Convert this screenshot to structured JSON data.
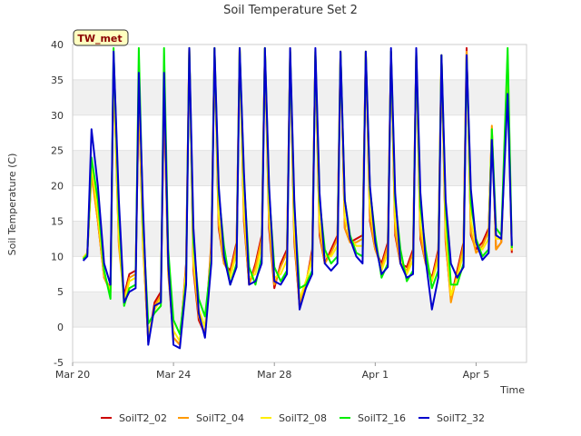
{
  "chart_data": {
    "type": "line",
    "title": "Soil Temperature Set 2",
    "xlabel": "Time",
    "ylabel": "Soil Temperature (C)",
    "station_tag": "TW_met",
    "xlim": [
      "2023-03-20",
      "2023-04-07"
    ],
    "ylim": [
      -5,
      40
    ],
    "yticks": [
      -5,
      0,
      5,
      10,
      15,
      20,
      25,
      30,
      35,
      40
    ],
    "xticks": [
      {
        "date": "2023-03-20",
        "label": "Mar 20"
      },
      {
        "date": "2023-03-24",
        "label": "Mar 24"
      },
      {
        "date": "2023-03-28",
        "label": "Mar 28"
      },
      {
        "date": "2023-04-01",
        "label": "Apr 1"
      },
      {
        "date": "2023-04-05",
        "label": "Apr 5"
      }
    ],
    "grid": "horizontal-bands",
    "legend_position": "bottom",
    "x": [
      "2023-03-20 10:00",
      "2023-03-20 14:00",
      "2023-03-20 18:00",
      "2023-03-21 00:00",
      "2023-03-21 06:00",
      "2023-03-21 12:00",
      "2023-03-21 15:00",
      "2023-03-21 20:00",
      "2023-03-22 01:00",
      "2023-03-22 06:00",
      "2023-03-22 12:00",
      "2023-03-22 15:00",
      "2023-03-22 19:00",
      "2023-03-23 00:00",
      "2023-03-23 06:00",
      "2023-03-23 12:00",
      "2023-03-23 15:00",
      "2023-03-23 19:00",
      "2023-03-24 00:00",
      "2023-03-24 06:00",
      "2023-03-24 12:00",
      "2023-03-24 15:00",
      "2023-03-24 19:00",
      "2023-03-25 00:00",
      "2023-03-25 06:00",
      "2023-03-25 12:00",
      "2023-03-25 15:00",
      "2023-03-25 19:00",
      "2023-03-26 00:00",
      "2023-03-26 06:00",
      "2023-03-26 12:00",
      "2023-03-26 15:00",
      "2023-03-26 19:00",
      "2023-03-27 00:00",
      "2023-03-27 06:00",
      "2023-03-27 12:00",
      "2023-03-27 15:00",
      "2023-03-27 19:00",
      "2023-03-28 00:00",
      "2023-03-28 06:00",
      "2023-03-28 12:00",
      "2023-03-28 15:00",
      "2023-03-28 19:00",
      "2023-03-29 00:00",
      "2023-03-29 06:00",
      "2023-03-29 12:00",
      "2023-03-29 15:00",
      "2023-03-29 19:00",
      "2023-03-30 00:00",
      "2023-03-30 06:00",
      "2023-03-30 12:00",
      "2023-03-30 15:00",
      "2023-03-30 19:00",
      "2023-03-31 00:00",
      "2023-03-31 06:00",
      "2023-03-31 12:00",
      "2023-03-31 15:00",
      "2023-03-31 19:00",
      "2023-04-01 00:00",
      "2023-04-01 06:00",
      "2023-04-01 12:00",
      "2023-04-01 15:00",
      "2023-04-01 19:00",
      "2023-04-02 00:00",
      "2023-04-02 06:00",
      "2023-04-02 12:00",
      "2023-04-02 15:00",
      "2023-04-02 19:00",
      "2023-04-03 00:00",
      "2023-04-03 06:00",
      "2023-04-03 12:00",
      "2023-04-03 15:00",
      "2023-04-03 19:00",
      "2023-04-04 00:00",
      "2023-04-04 06:00",
      "2023-04-04 12:00",
      "2023-04-04 15:00",
      "2023-04-04 19:00",
      "2023-04-05 00:00",
      "2023-04-05 06:00",
      "2023-04-05 12:00",
      "2023-04-05 15:00",
      "2023-04-05 19:00",
      "2023-04-06 00:00",
      "2023-04-06 06:00",
      "2023-04-06 10:00"
    ],
    "series": [
      {
        "name": "SoilT2_02",
        "color": "#cc0000",
        "values": [
          9.8,
          10.5,
          22.0,
          15.0,
          7.0,
          5.5,
          37.0,
          12.0,
          4.5,
          7.5,
          8.0,
          33.0,
          12.0,
          -2.0,
          3.5,
          5.0,
          33.0,
          8.0,
          -1.5,
          -2.5,
          9.0,
          39.5,
          8.0,
          1.0,
          -1.0,
          12.0,
          39.0,
          14.0,
          9.0,
          8.0,
          12.0,
          39.5,
          15.0,
          6.0,
          9.0,
          13.0,
          39.0,
          14.0,
          5.5,
          9.0,
          11.0,
          38.5,
          12.0,
          3.0,
          6.0,
          11.0,
          38.5,
          13.0,
          9.0,
          11.0,
          13.0,
          39.0,
          14.0,
          12.0,
          12.5,
          13.0,
          39.0,
          15.0,
          11.0,
          9.0,
          12.0,
          39.0,
          13.0,
          9.0,
          8.5,
          11.0,
          38.5,
          12.5,
          9.0,
          7.0,
          11.0,
          38.5,
          12.0,
          4.0,
          8.0,
          12.0,
          39.5,
          13.0,
          11.0,
          12.0,
          14.0,
          28.0,
          11.0,
          12.0,
          36.0,
          10.5
        ]
      },
      {
        "name": "SoilT2_04",
        "color": "#ff9900",
        "values": [
          9.8,
          10.5,
          21.5,
          15.0,
          7.0,
          5.0,
          36.5,
          11.5,
          4.0,
          7.0,
          7.5,
          32.5,
          11.5,
          -2.0,
          3.0,
          4.5,
          32.5,
          7.5,
          -1.5,
          -2.5,
          8.5,
          39.5,
          8.5,
          1.5,
          -1.0,
          11.5,
          39.5,
          14.5,
          9.0,
          7.5,
          11.5,
          39.5,
          15.5,
          6.0,
          8.5,
          12.5,
          39.5,
          15.0,
          6.0,
          8.5,
          10.5,
          39.0,
          12.5,
          3.0,
          6.0,
          10.5,
          38.5,
          13.5,
          9.0,
          10.5,
          12.5,
          38.5,
          14.0,
          12.0,
          12.0,
          12.5,
          38.5,
          15.5,
          11.0,
          8.5,
          11.5,
          38.5,
          13.5,
          9.0,
          8.0,
          10.5,
          38.5,
          13.0,
          9.0,
          6.5,
          10.5,
          38.0,
          12.5,
          3.5,
          7.5,
          11.5,
          39.0,
          13.5,
          10.5,
          11.5,
          13.5,
          28.5,
          11.0,
          12.0,
          37.0,
          10.8
        ]
      },
      {
        "name": "SoilT2_08",
        "color": "#ffee00",
        "values": [
          9.8,
          10.5,
          23.0,
          16.0,
          7.5,
          5.0,
          37.5,
          13.0,
          3.5,
          6.5,
          7.0,
          37.0,
          12.5,
          -1.0,
          2.5,
          4.0,
          37.0,
          8.5,
          -0.5,
          -2.0,
          8.0,
          39.5,
          9.5,
          2.5,
          0.0,
          10.5,
          39.5,
          16.0,
          10.0,
          7.0,
          10.5,
          39.5,
          17.0,
          7.0,
          7.5,
          11.5,
          39.5,
          16.0,
          7.0,
          7.5,
          9.5,
          39.5,
          14.0,
          4.0,
          6.5,
          9.5,
          39.0,
          15.0,
          10.0,
          10.0,
          11.5,
          39.0,
          15.5,
          12.5,
          11.5,
          11.5,
          39.0,
          17.0,
          12.0,
          8.0,
          10.5,
          39.0,
          15.0,
          10.0,
          7.5,
          9.5,
          38.5,
          14.5,
          10.0,
          6.5,
          9.5,
          38.5,
          14.0,
          4.5,
          7.0,
          10.5,
          38.5,
          15.0,
          11.5,
          11.0,
          12.5,
          28.0,
          12.5,
          12.5,
          38.5,
          11.0
        ]
      },
      {
        "name": "SoilT2_16",
        "color": "#00ee00",
        "values": [
          9.6,
          10.3,
          24.0,
          18.0,
          8.0,
          4.0,
          39.5,
          16.0,
          3.0,
          5.5,
          6.0,
          39.5,
          15.0,
          0.5,
          2.0,
          3.0,
          39.5,
          11.0,
          1.0,
          -1.0,
          6.5,
          39.5,
          12.0,
          4.0,
          1.5,
          9.5,
          39.5,
          19.0,
          11.5,
          6.0,
          9.0,
          39.5,
          21.0,
          8.5,
          6.0,
          10.0,
          39.5,
          19.0,
          8.5,
          6.5,
          8.0,
          39.0,
          17.0,
          5.5,
          6.0,
          8.0,
          39.0,
          18.0,
          11.0,
          9.0,
          10.0,
          39.0,
          18.0,
          13.0,
          10.5,
          10.0,
          39.0,
          19.5,
          13.0,
          7.0,
          9.0,
          39.0,
          18.0,
          11.0,
          6.5,
          8.0,
          39.0,
          17.0,
          11.0,
          5.5,
          8.0,
          38.5,
          17.0,
          6.0,
          6.0,
          9.0,
          38.5,
          17.5,
          12.5,
          10.0,
          11.0,
          28.0,
          14.0,
          13.0,
          39.5,
          11.2
        ]
      },
      {
        "name": "SoilT2_32",
        "color": "#0000cc",
        "values": [
          9.4,
          10.0,
          28.0,
          20.0,
          9.0,
          6.0,
          39.0,
          18.0,
          3.5,
          5.0,
          5.5,
          36.0,
          17.0,
          -2.5,
          3.0,
          3.5,
          36.0,
          9.0,
          -2.5,
          -3.0,
          6.0,
          39.5,
          14.0,
          2.0,
          -1.5,
          9.0,
          39.5,
          20.0,
          10.0,
          6.0,
          8.5,
          39.5,
          22.0,
          6.0,
          6.5,
          9.0,
          39.5,
          20.0,
          6.5,
          6.0,
          7.5,
          39.5,
          18.0,
          2.5,
          5.5,
          7.5,
          39.5,
          19.0,
          9.0,
          8.0,
          9.0,
          39.0,
          18.0,
          12.5,
          10.0,
          9.0,
          39.0,
          20.0,
          12.0,
          7.5,
          8.5,
          39.5,
          19.0,
          9.0,
          7.0,
          7.5,
          39.5,
          19.0,
          9.5,
          2.5,
          7.0,
          38.5,
          18.0,
          9.0,
          7.0,
          8.5,
          38.5,
          19.5,
          12.0,
          9.5,
          10.5,
          26.5,
          13.0,
          12.5,
          33.0,
          11.5
        ]
      }
    ]
  }
}
